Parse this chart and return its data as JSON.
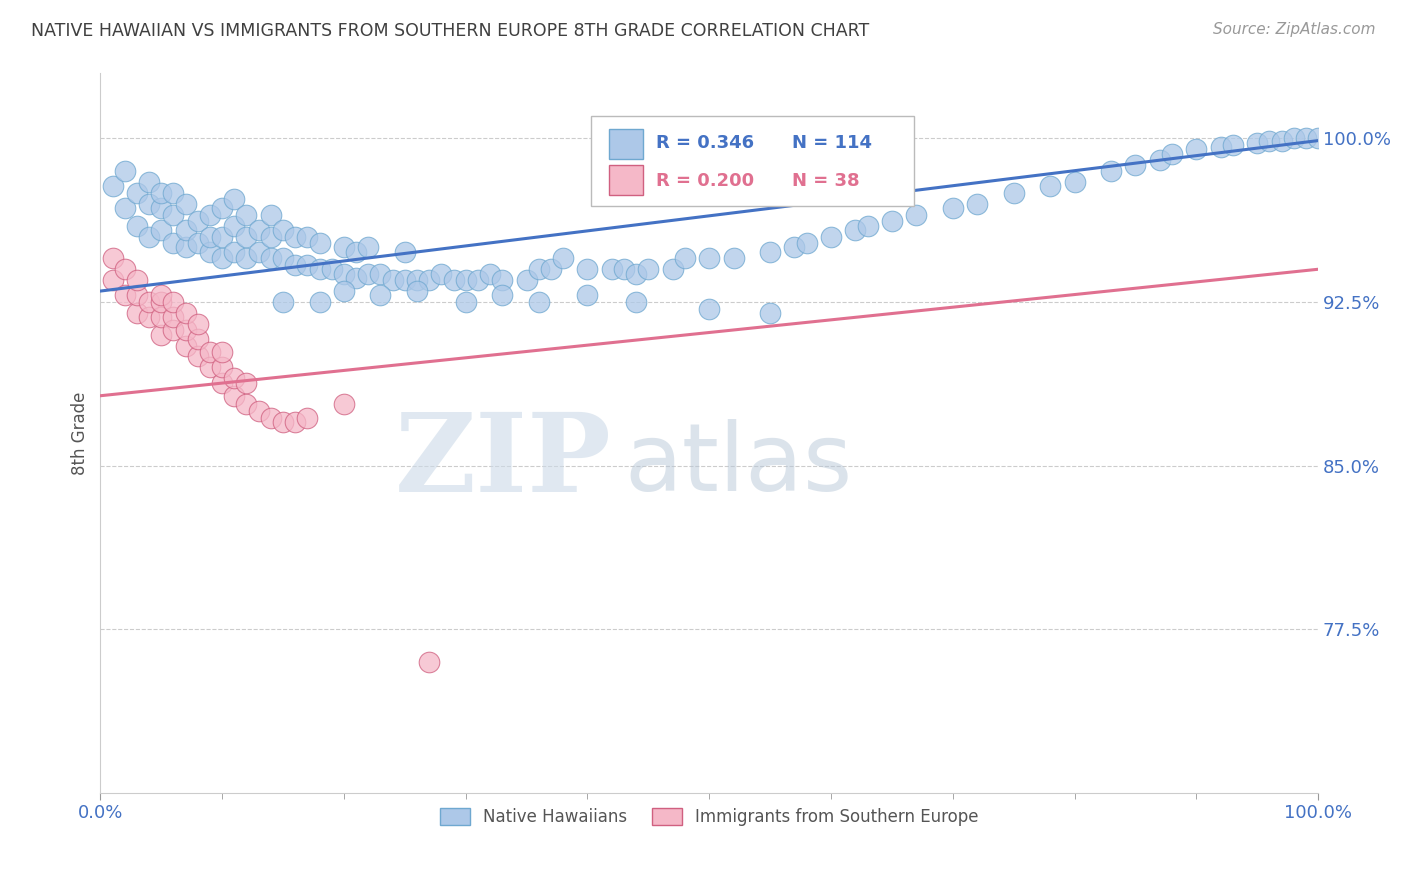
{
  "title": "NATIVE HAWAIIAN VS IMMIGRANTS FROM SOUTHERN EUROPE 8TH GRADE CORRELATION CHART",
  "source_text": "Source: ZipAtlas.com",
  "ylabel": "8th Grade",
  "x_min": 0.0,
  "x_max": 1.0,
  "y_min": 0.7,
  "y_max": 1.03,
  "yticks": [
    0.775,
    0.85,
    0.925,
    1.0
  ],
  "ytick_labels": [
    "77.5%",
    "85.0%",
    "92.5%",
    "100.0%"
  ],
  "xticks": [
    0.0,
    1.0
  ],
  "xtick_labels": [
    "0.0%",
    "100.0%"
  ],
  "blue_color": "#adc8e8",
  "blue_edge_color": "#6fa8d0",
  "pink_color": "#f5b8c8",
  "pink_edge_color": "#d06080",
  "blue_line_color": "#4472c4",
  "pink_line_color": "#e07090",
  "grid_color": "#cccccc",
  "title_color": "#404040",
  "axis_label_color": "#555555",
  "tick_color": "#4472c4",
  "legend_R_blue": "R = 0.346",
  "legend_N_blue": "N = 114",
  "legend_R_pink": "R = 0.200",
  "legend_N_pink": "N = 38",
  "legend_label_blue": "Native Hawaiians",
  "legend_label_pink": "Immigrants from Southern Europe",
  "watermark_zip": "ZIP",
  "watermark_atlas": "atlas",
  "blue_line_x": [
    0.0,
    1.0
  ],
  "blue_line_y": [
    0.93,
    0.999
  ],
  "pink_line_x": [
    0.0,
    1.0
  ],
  "pink_line_y": [
    0.882,
    0.94
  ],
  "blue_scatter_x": [
    0.01,
    0.02,
    0.02,
    0.03,
    0.03,
    0.04,
    0.04,
    0.04,
    0.05,
    0.05,
    0.05,
    0.06,
    0.06,
    0.06,
    0.07,
    0.07,
    0.07,
    0.08,
    0.08,
    0.09,
    0.09,
    0.09,
    0.1,
    0.1,
    0.1,
    0.11,
    0.11,
    0.11,
    0.12,
    0.12,
    0.12,
    0.13,
    0.13,
    0.14,
    0.14,
    0.14,
    0.15,
    0.15,
    0.16,
    0.16,
    0.17,
    0.17,
    0.18,
    0.18,
    0.19,
    0.2,
    0.2,
    0.21,
    0.21,
    0.22,
    0.22,
    0.23,
    0.24,
    0.25,
    0.25,
    0.26,
    0.27,
    0.28,
    0.29,
    0.3,
    0.31,
    0.32,
    0.33,
    0.35,
    0.36,
    0.37,
    0.38,
    0.4,
    0.42,
    0.43,
    0.44,
    0.45,
    0.47,
    0.48,
    0.5,
    0.52,
    0.55,
    0.57,
    0.58,
    0.6,
    0.62,
    0.63,
    0.65,
    0.67,
    0.7,
    0.72,
    0.75,
    0.78,
    0.8,
    0.83,
    0.85,
    0.87,
    0.88,
    0.9,
    0.92,
    0.93,
    0.95,
    0.96,
    0.97,
    0.98,
    0.99,
    1.0,
    0.15,
    0.18,
    0.2,
    0.23,
    0.26,
    0.3,
    0.33,
    0.36,
    0.4,
    0.44,
    0.5,
    0.55
  ],
  "blue_scatter_y": [
    0.978,
    0.968,
    0.985,
    0.96,
    0.975,
    0.955,
    0.97,
    0.98,
    0.958,
    0.968,
    0.975,
    0.952,
    0.965,
    0.975,
    0.95,
    0.958,
    0.97,
    0.952,
    0.962,
    0.948,
    0.955,
    0.965,
    0.945,
    0.955,
    0.968,
    0.948,
    0.96,
    0.972,
    0.945,
    0.955,
    0.965,
    0.948,
    0.958,
    0.945,
    0.955,
    0.965,
    0.945,
    0.958,
    0.942,
    0.955,
    0.942,
    0.955,
    0.94,
    0.952,
    0.94,
    0.938,
    0.95,
    0.936,
    0.948,
    0.938,
    0.95,
    0.938,
    0.935,
    0.935,
    0.948,
    0.935,
    0.935,
    0.938,
    0.935,
    0.935,
    0.935,
    0.938,
    0.935,
    0.935,
    0.94,
    0.94,
    0.945,
    0.94,
    0.94,
    0.94,
    0.938,
    0.94,
    0.94,
    0.945,
    0.945,
    0.945,
    0.948,
    0.95,
    0.952,
    0.955,
    0.958,
    0.96,
    0.962,
    0.965,
    0.968,
    0.97,
    0.975,
    0.978,
    0.98,
    0.985,
    0.988,
    0.99,
    0.993,
    0.995,
    0.996,
    0.997,
    0.998,
    0.999,
    0.999,
    1.0,
    1.0,
    1.0,
    0.925,
    0.925,
    0.93,
    0.928,
    0.93,
    0.925,
    0.928,
    0.925,
    0.928,
    0.925,
    0.922,
    0.92
  ],
  "pink_scatter_x": [
    0.01,
    0.01,
    0.02,
    0.02,
    0.03,
    0.03,
    0.03,
    0.04,
    0.04,
    0.05,
    0.05,
    0.05,
    0.05,
    0.06,
    0.06,
    0.06,
    0.07,
    0.07,
    0.07,
    0.08,
    0.08,
    0.08,
    0.09,
    0.09,
    0.1,
    0.1,
    0.1,
    0.11,
    0.11,
    0.12,
    0.12,
    0.13,
    0.14,
    0.15,
    0.16,
    0.17,
    0.2,
    0.27
  ],
  "pink_scatter_y": [
    0.935,
    0.945,
    0.928,
    0.94,
    0.92,
    0.928,
    0.935,
    0.918,
    0.925,
    0.91,
    0.918,
    0.925,
    0.928,
    0.912,
    0.918,
    0.925,
    0.905,
    0.912,
    0.92,
    0.9,
    0.908,
    0.915,
    0.895,
    0.902,
    0.888,
    0.895,
    0.902,
    0.882,
    0.89,
    0.878,
    0.888,
    0.875,
    0.872,
    0.87,
    0.87,
    0.872,
    0.878,
    0.76
  ]
}
